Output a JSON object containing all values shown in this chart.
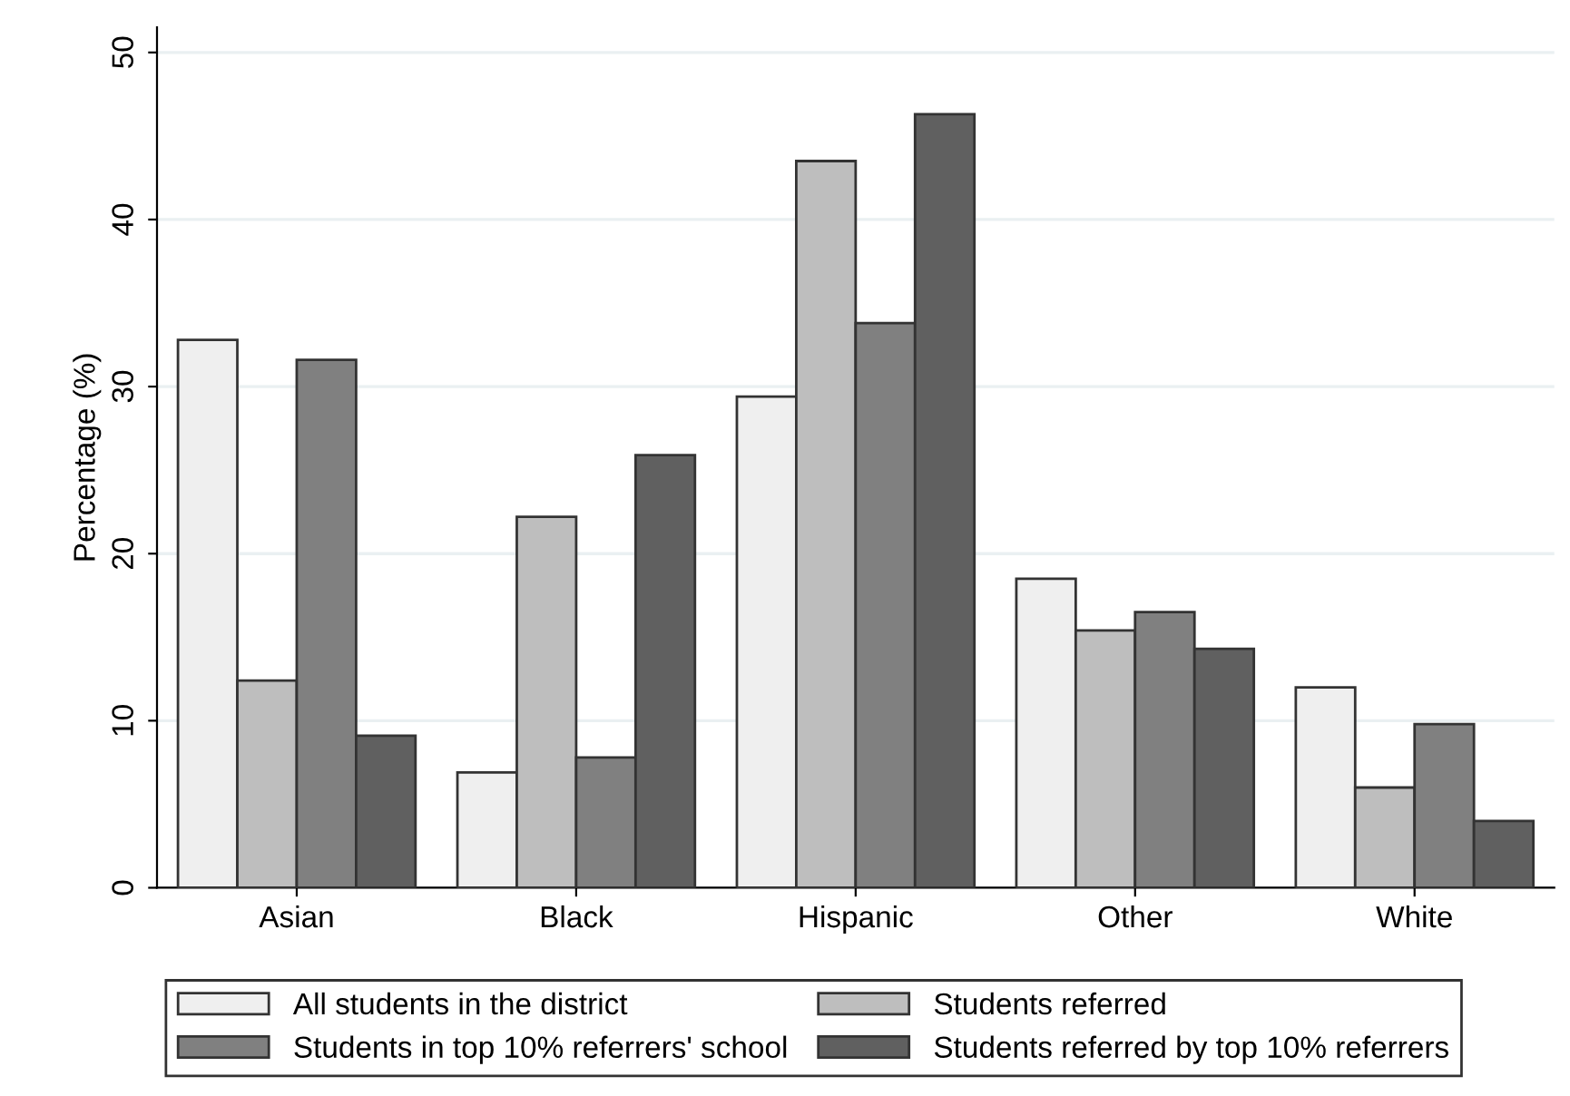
{
  "chart_data": {
    "type": "bar",
    "ylabel": "Percentage (%)",
    "categories": [
      "Asian",
      "Black",
      "Hispanic",
      "Other",
      "White"
    ],
    "series": [
      {
        "name": "All students in the district",
        "color": "#efefef",
        "values": [
          32.8,
          6.9,
          29.4,
          18.5,
          12.0
        ]
      },
      {
        "name": "Students referred",
        "color": "#bebebe",
        "values": [
          12.4,
          22.2,
          43.5,
          15.4,
          6.0
        ]
      },
      {
        "name": "Students in top 10% referrers' school",
        "color": "#808080",
        "values": [
          31.6,
          7.8,
          33.8,
          16.5,
          9.8
        ]
      },
      {
        "name": "Students referred by top 10% referrers",
        "color": "#606060",
        "values": [
          9.1,
          25.9,
          46.3,
          14.3,
          4.0
        ]
      }
    ],
    "ylim": [
      0,
      51.5
    ],
    "yticks": [
      0,
      10,
      20,
      30,
      40,
      50
    ],
    "grid": "y",
    "legend": "bottom"
  }
}
